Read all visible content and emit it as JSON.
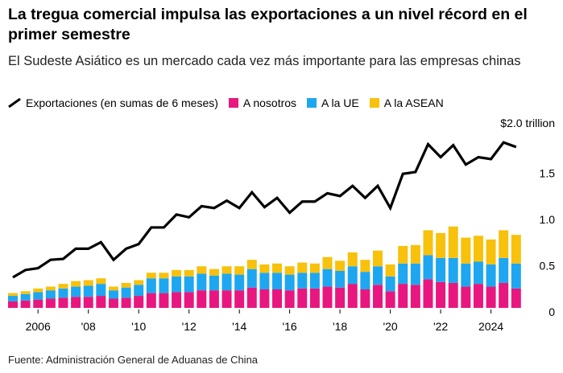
{
  "header": {
    "title": "La tregua comercial impulsa las exportaciones a un nivel récord en el primer semestre",
    "subtitle": "El Sudeste Asiático es un mercado cada vez más importante para las empresas chinas"
  },
  "legend": {
    "items": [
      {
        "label": "Exportaciones (en sumas de 6 meses)",
        "kind": "line",
        "color": "#000000"
      },
      {
        "label": "A nosotros",
        "kind": "bar",
        "color": "#e8177f"
      },
      {
        "label": "A la UE",
        "kind": "bar",
        "color": "#1ea7f0"
      },
      {
        "label": "A la ASEAN",
        "kind": "bar",
        "color": "#f7c10c"
      }
    ]
  },
  "footer": {
    "source": "Fuente: Administración General de Aduanas de China"
  },
  "chart_data": {
    "type": "bar",
    "stacked": true,
    "x": [
      "2005-H1",
      "2005-H2",
      "2006-H1",
      "2006-H2",
      "2007-H1",
      "2007-H2",
      "2008-H1",
      "2008-H2",
      "2009-H1",
      "2009-H2",
      "2010-H1",
      "2010-H2",
      "2011-H1",
      "2011-H2",
      "2012-H1",
      "2012-H2",
      "2013-H1",
      "2013-H2",
      "2014-H1",
      "2014-H2",
      "2015-H1",
      "2015-H2",
      "2016-H1",
      "2016-H2",
      "2017-H1",
      "2017-H2",
      "2018-H1",
      "2018-H2",
      "2019-H1",
      "2019-H2",
      "2020-H1",
      "2020-H2",
      "2021-H1",
      "2021-H2",
      "2022-H1",
      "2022-H2",
      "2023-H1",
      "2023-H2",
      "2024-H1",
      "2024-H2",
      "2025-H1"
    ],
    "series": [
      {
        "name": "A nosotros",
        "color": "#e8177f",
        "values": [
          0.07,
          0.08,
          0.09,
          0.1,
          0.11,
          0.12,
          0.12,
          0.13,
          0.1,
          0.11,
          0.13,
          0.16,
          0.16,
          0.17,
          0.17,
          0.19,
          0.19,
          0.19,
          0.19,
          0.22,
          0.2,
          0.2,
          0.19,
          0.21,
          0.21,
          0.23,
          0.22,
          0.26,
          0.2,
          0.25,
          0.18,
          0.26,
          0.25,
          0.31,
          0.28,
          0.27,
          0.23,
          0.26,
          0.23,
          0.27,
          0.21
        ]
      },
      {
        "name": "A la UE",
        "color": "#1ea7f0",
        "values": [
          0.06,
          0.07,
          0.08,
          0.09,
          0.1,
          0.11,
          0.12,
          0.13,
          0.09,
          0.11,
          0.12,
          0.16,
          0.16,
          0.17,
          0.17,
          0.18,
          0.16,
          0.18,
          0.17,
          0.2,
          0.18,
          0.18,
          0.17,
          0.17,
          0.17,
          0.19,
          0.18,
          0.19,
          0.19,
          0.2,
          0.16,
          0.22,
          0.23,
          0.26,
          0.26,
          0.27,
          0.25,
          0.24,
          0.24,
          0.27,
          0.27
        ]
      },
      {
        "name": "A la ASEAN",
        "color": "#f7c10c",
        "values": [
          0.03,
          0.03,
          0.04,
          0.04,
          0.05,
          0.06,
          0.06,
          0.06,
          0.04,
          0.05,
          0.05,
          0.06,
          0.06,
          0.07,
          0.07,
          0.08,
          0.07,
          0.08,
          0.09,
          0.1,
          0.09,
          0.1,
          0.09,
          0.11,
          0.1,
          0.13,
          0.11,
          0.15,
          0.13,
          0.17,
          0.13,
          0.19,
          0.2,
          0.27,
          0.27,
          0.34,
          0.28,
          0.28,
          0.27,
          0.3,
          0.31
        ]
      }
    ],
    "line": {
      "name": "Exportaciones (en sumas de 6 meses)",
      "color": "#000000",
      "values": [
        0.33,
        0.41,
        0.43,
        0.52,
        0.53,
        0.64,
        0.64,
        0.71,
        0.52,
        0.64,
        0.69,
        0.87,
        0.87,
        1.01,
        0.98,
        1.1,
        1.08,
        1.16,
        1.08,
        1.25,
        1.09,
        1.19,
        1.03,
        1.15,
        1.15,
        1.24,
        1.21,
        1.32,
        1.19,
        1.32,
        1.08,
        1.45,
        1.47,
        1.77,
        1.63,
        1.76,
        1.55,
        1.63,
        1.61,
        1.79,
        1.74
      ]
    },
    "ylim": [
      0,
      2.0
    ],
    "yticks": [
      {
        "value": 0,
        "label": "0"
      },
      {
        "value": 0.5,
        "label": "0.5"
      },
      {
        "value": 1.0,
        "label": "1.0"
      },
      {
        "value": 1.5,
        "label": "1.5"
      },
      {
        "value": 2.0,
        "label": "$2.0 trillion"
      }
    ],
    "xticks": [
      {
        "year": 2006,
        "label": "2006"
      },
      {
        "year": 2008,
        "label": "'08"
      },
      {
        "year": 2010,
        "label": "'10"
      },
      {
        "year": 2012,
        "label": "'12"
      },
      {
        "year": 2014,
        "label": "'14"
      },
      {
        "year": 2016,
        "label": "'16"
      },
      {
        "year": 2018,
        "label": "'18"
      },
      {
        "year": 2020,
        "label": "'20"
      },
      {
        "year": 2022,
        "label": "'22"
      },
      {
        "year": 2024,
        "label": "2024"
      }
    ],
    "grid": false
  }
}
